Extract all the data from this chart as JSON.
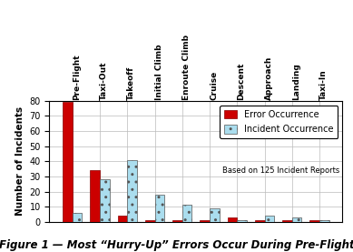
{
  "categories": [
    "Pre-Flight",
    "Taxi-Out",
    "Takeoff",
    "Initial Climb",
    "Enroute Climb",
    "Cruise",
    "Descent",
    "Approach",
    "Landing",
    "Taxi-In"
  ],
  "error_values": [
    79,
    34,
    4,
    1,
    1,
    1,
    3,
    1,
    1,
    1
  ],
  "incident_values": [
    6,
    28,
    41,
    18,
    11,
    9,
    1,
    4,
    3,
    1
  ],
  "error_color": "#CC0000",
  "incident_color": "#AADDEE",
  "ylim": [
    0,
    80
  ],
  "yticks": [
    0,
    10,
    20,
    30,
    40,
    50,
    60,
    70,
    80
  ],
  "ylabel": "Number of Incidents",
  "title": "Figure 1 — Most “Hurry-Up” Errors Occur During Pre-Flight",
  "legend_error": "Error Occurrence",
  "legend_incident": "Incident Occurrence",
  "legend_note": "Based on 125 Incident Reports",
  "bar_width": 0.35,
  "background_color": "#FFFFFF",
  "grid_color": "#BBBBBB",
  "title_fontsize": 8.5,
  "axis_label_fontsize": 7.5,
  "tick_fontsize": 7,
  "legend_fontsize": 7,
  "cat_fontsize": 6.5
}
